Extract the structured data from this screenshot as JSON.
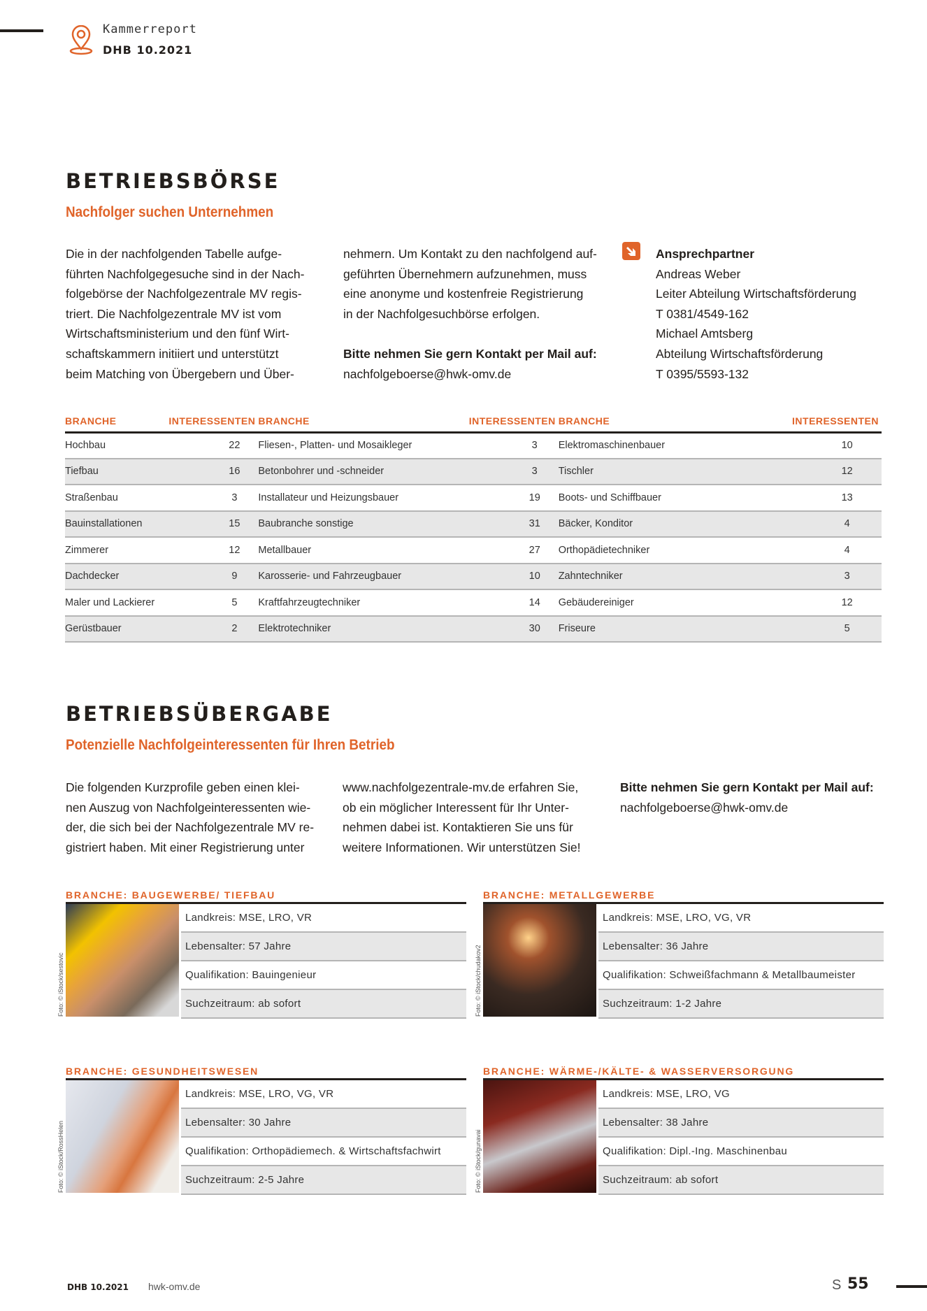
{
  "header": {
    "section": "Kammerreport",
    "issue": "DHB 10.2021",
    "icon": "location-pin-icon"
  },
  "accent": "#e0642a",
  "boerse": {
    "title": "BETRIEBSBÖRSE",
    "subtitle": "Nachfolger suchen Unternehmen",
    "col1": [
      "Die in der nachfolgenden Tabelle aufge-",
      "führten Nachfolgegesuche sind in der Nach-",
      "folgebörse der Nachfolgezentrale MV regis-",
      "triert. Die Nachfolgezentrale MV ist vom",
      "Wirtschaftsministerium und den fünf Wirt-",
      "schaftskammern initiiert und unterstützt",
      "beim Matching von Übergebern und Über-"
    ],
    "col2": [
      "nehmern. Um Kontakt zu den nachfolgend auf-",
      "geführten Übernehmern aufzunehmen, muss",
      "eine anonyme und kostenfreie Registrierung",
      "in der Nachfolgesuchbörse erfolgen."
    ],
    "contact_prompt": "Bitte nehmen Sie gern Kontakt per Mail auf:",
    "email": "nachfolgeboerse@hwk-omv.de",
    "contact": {
      "icon": "arrow-box-icon",
      "title": "Ansprechpartner",
      "lines": [
        "Andreas Weber",
        "Leiter Abteilung Wirtschaftsförderung",
        "T 0381/4549-162",
        "Michael Amtsberg",
        "Abteilung Wirtschaftsförderung",
        "T 0395/5593-132"
      ]
    },
    "table": {
      "headers": [
        "BRANCHE",
        "INTERESSENTEN",
        "BRANCHE",
        "INTERESSENTEN",
        "BRANCHE",
        "INTERESSENTEN"
      ],
      "rows": [
        [
          "Hochbau",
          "22",
          "Fliesen-, Platten- und Mosaikleger",
          "3",
          "Elektromaschinenbauer",
          "10"
        ],
        [
          "Tiefbau",
          "16",
          "Betonbohrer und -schneider",
          "3",
          "Tischler",
          "12"
        ],
        [
          "Straßenbau",
          "3",
          "Installateur und Heizungsbauer",
          "19",
          "Boots- und Schiffbauer",
          "13"
        ],
        [
          "Bauinstallationen",
          "15",
          "Baubranche sonstige",
          "31",
          "Bäcker, Konditor",
          "4"
        ],
        [
          "Zimmerer",
          "12",
          "Metallbauer",
          "27",
          "Orthopädietechniker",
          "4"
        ],
        [
          "Dachdecker",
          "9",
          "Karosserie- und Fahrzeugbauer",
          "10",
          "Zahntechniker",
          "3"
        ],
        [
          "Maler und Lackierer",
          "5",
          "Kraftfahrzeugtechniker",
          "14",
          "Gebäudereiniger",
          "12"
        ],
        [
          "Gerüstbauer",
          "2",
          "Elektrotechniker",
          "30",
          "Friseure",
          "5"
        ]
      ]
    }
  },
  "uebergabe": {
    "title": "BETRIEBSÜBERGABE",
    "subtitle": "Potenzielle Nachfolgeinteressenten für Ihren Betrieb",
    "col1": [
      "Die folgenden Kurzprofile geben einen klei-",
      "nen Auszug von Nachfolgeinteressenten wie-",
      "der, die sich bei der Nachfolgezentrale MV re-",
      "gistriert haben. Mit einer Registrierung unter"
    ],
    "col2": [
      "www.nachfolgezentrale-mv.de erfahren Sie,",
      "ob ein möglicher Interessent für Ihr Unter-",
      "nehmen dabei ist. Kontaktieren Sie uns für",
      "weitere Informationen. Wir unterstützen Sie!"
    ],
    "contact_prompt": "Bitte nehmen Sie gern Kontakt per Mail auf:",
    "email": "nachfolgeboerse@hwk-omv.de",
    "profiles": [
      {
        "branche": "BRANCHE: BAUGEWERBE/ TIEFBAU",
        "credit": "Foto: © iStock/sestovic",
        "rows": [
          "Landkreis:  MSE, LRO, VR",
          "Lebensalter: 57 Jahre",
          "Qualifikation: Bauingenieur",
          "Suchzeitraum: ab sofort"
        ]
      },
      {
        "branche": "BRANCHE: METALLGEWERBE",
        "credit": "Foto: © iStock/chudakov2",
        "rows": [
          "Landkreis: MSE, LRO, VG, VR",
          "Lebensalter: 36 Jahre",
          "Qualifikation: Schweißfachmann & Metallbaumeister",
          "Suchzeitraum:  1-2 Jahre"
        ]
      },
      {
        "branche": "BRANCHE: GESUNDHEITSWESEN",
        "credit": "Foto: © iStock/RossHelen",
        "rows": [
          "Landkreis: MSE, LRO, VG, VR",
          "Lebensalter: 30 Jahre",
          "Qualifikation: Orthopädiemech. & Wirtschaftsfachwirt",
          "Suchzeitraum: 2-5 Jahre"
        ]
      },
      {
        "branche": "BRANCHE: WÄRME-/KÄLTE- & WASSERVERSORGUNG",
        "credit": "Foto: © iStock/gunavai",
        "rows": [
          "Landkreis: MSE, LRO, VG",
          "Lebensalter: 38 Jahre",
          "Qualifikation: Dipl.-Ing. Maschinenbau",
          "Suchzeitraum: ab sofort"
        ]
      }
    ]
  },
  "footer": {
    "issue": "DHB 10.2021",
    "site": "hwk-omv.de",
    "page_prefix": "S",
    "page": "55"
  }
}
